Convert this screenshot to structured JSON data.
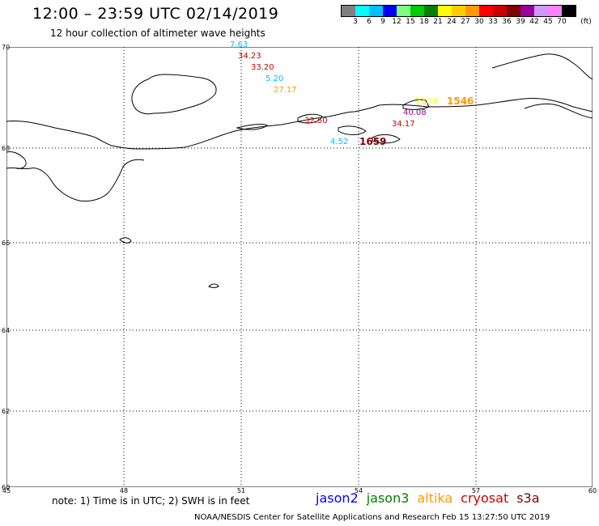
{
  "title": "12:00 – 23:59 UTC 02/14/2019",
  "subtitle": "12 hour collection of altimeter wave heights",
  "colorbar": {
    "unit_label": "(ft)",
    "colors": [
      "#808080",
      "#00ffff",
      "#00bfff",
      "#0000ff",
      "#7fff7f",
      "#00cc00",
      "#008000",
      "#ffff00",
      "#ffcc00",
      "#ff9900",
      "#ff0000",
      "#cc0000",
      "#800000",
      "#990099",
      "#cc99ff",
      "#ff80ff",
      "#000000"
    ],
    "ticks": [
      "3",
      "6",
      "9",
      "12",
      "15",
      "18",
      "21",
      "24",
      "27",
      "30",
      "33",
      "36",
      "39",
      "42",
      "45",
      "70"
    ]
  },
  "axes": {
    "lat_labels": [
      "70",
      "68",
      "66",
      "64",
      "62",
      "60"
    ],
    "lon_labels": [
      "45",
      "48",
      "51",
      "54",
      "57",
      "60"
    ]
  },
  "observations": [
    {
      "text": "7.63",
      "color": "#00bfff"
    },
    {
      "text": "34.23",
      "color": "#cc0000"
    },
    {
      "text": "33.20",
      "color": "#cc0000"
    },
    {
      "text": "5.20",
      "color": "#00bfff"
    },
    {
      "text": "27.17",
      "color": "#ff9900"
    },
    {
      "text": "23.56",
      "color": "#ffff00"
    },
    {
      "text": "1546",
      "color": "#ff9900"
    },
    {
      "text": "40.08",
      "color": "#990099"
    },
    {
      "text": "32.50",
      "color": "#cc0000"
    },
    {
      "text": "34.17",
      "color": "#cc0000"
    },
    {
      "text": "4.52",
      "color": "#00bfff"
    },
    {
      "text": "1659",
      "color": "#800000"
    }
  ],
  "note": "note: 1) Time is in UTC; 2) SWH is in feet",
  "satellites": [
    {
      "name": "jason2",
      "color": "#0000ff"
    },
    {
      "name": "jason3",
      "color": "#008000"
    },
    {
      "name": "altika",
      "color": "#ff9900"
    },
    {
      "name": "cryosat",
      "color": "#cc0000"
    },
    {
      "name": "s3a",
      "color": "#800000"
    }
  ],
  "credit": "NOAA/NESDIS Center for Satellite Applications and Research    Feb 15 13:27:50 UTC 2019"
}
